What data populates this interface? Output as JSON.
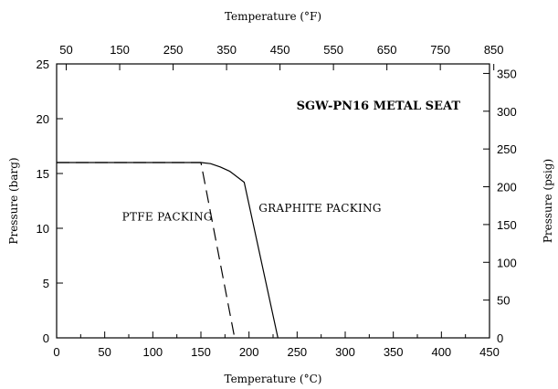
{
  "chart_data": {
    "type": "line",
    "title": "SGW-PN16 METAL SEAT",
    "xlabel": "Temperature (°C)",
    "ylabel": "Pressure (barg)",
    "x2label": "Temperature (°F)",
    "y2label": "Pressure (psig)",
    "xlim": [
      0,
      450
    ],
    "ylim": [
      0,
      25
    ],
    "x2lim": [
      32,
      842
    ],
    "y2lim": [
      0,
      362.6
    ],
    "x_ticks": [
      0,
      50,
      100,
      150,
      200,
      250,
      300,
      350,
      400,
      450
    ],
    "y_ticks": [
      0,
      5,
      10,
      15,
      20,
      25
    ],
    "x2_ticks": [
      50,
      150,
      250,
      350,
      450,
      550,
      650,
      750,
      850
    ],
    "y2_ticks": [
      0,
      50,
      100,
      150,
      200,
      250,
      300,
      350
    ],
    "grid": false,
    "legend": "none",
    "series": [
      {
        "name": "GRAPHITE PACKING",
        "style": "solid",
        "x": [
          0,
          150,
          160,
          170,
          180,
          195,
          230
        ],
        "y": [
          16,
          16,
          15.9,
          15.6,
          15.2,
          14.2,
          0
        ]
      },
      {
        "name": "PTFE PACKING",
        "style": "dashed",
        "x": [
          0,
          150,
          185
        ],
        "y": [
          16,
          16,
          0
        ]
      }
    ],
    "annotations": [
      {
        "text": "GRAPHITE PACKING",
        "x": 210,
        "y": 11.5
      },
      {
        "text": "PTFE PACKING",
        "x": 68,
        "y": 10.7
      }
    ]
  }
}
